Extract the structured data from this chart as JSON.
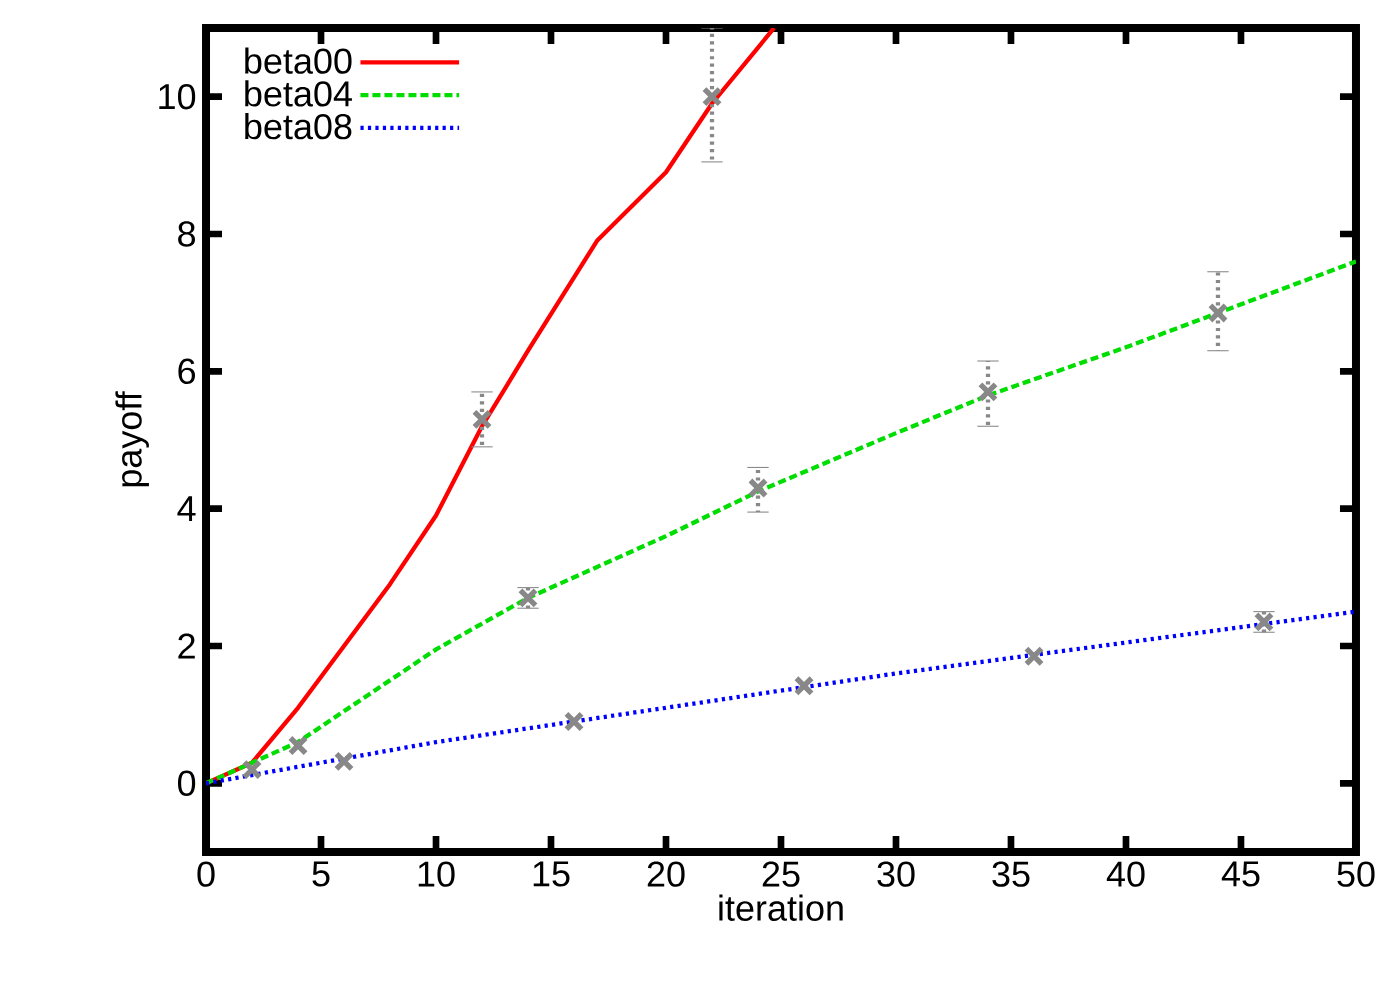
{
  "chart_data": {
    "type": "line",
    "xlabel": "iteration",
    "ylabel": "payoff",
    "xlim": [
      0,
      50
    ],
    "ylim": [
      -1,
      11
    ],
    "xticks": [
      0,
      5,
      10,
      15,
      20,
      25,
      30,
      35,
      40,
      45,
      50
    ],
    "yticks": [
      0,
      2,
      4,
      6,
      8,
      10
    ],
    "legend": "top left",
    "grid": false,
    "series": [
      {
        "name": "beta00",
        "color": "#ff0000",
        "line_style": "solid",
        "x": [
          0,
          2,
          4,
          6,
          8,
          10,
          12,
          14,
          17,
          20,
          22,
          24.7
        ],
        "values": [
          0,
          0.3,
          1.1,
          2.0,
          2.9,
          3.9,
          5.2,
          6.3,
          7.9,
          8.9,
          9.9,
          11
        ]
      },
      {
        "name": "beta04",
        "color": "#00dd00",
        "line_style": "dashed",
        "x": [
          0,
          4,
          10,
          14,
          20,
          24,
          30,
          34,
          40,
          44,
          50
        ],
        "values": [
          0,
          0.6,
          1.95,
          2.7,
          3.6,
          4.25,
          5.1,
          5.65,
          6.35,
          6.85,
          7.6
        ]
      },
      {
        "name": "beta08",
        "color": "#0000ff",
        "line_style": "dotted",
        "x": [
          0,
          10,
          20,
          30,
          40,
          50
        ],
        "values": [
          0,
          0.6,
          1.1,
          1.6,
          2.05,
          2.5
        ]
      },
      {
        "type": "scatter",
        "marker": "cross",
        "color": "#888888",
        "x": [
          2,
          4,
          6,
          12,
          14,
          16,
          22,
          24,
          26,
          34,
          36,
          44,
          46
        ],
        "values": [
          0.2,
          0.55,
          0.32,
          5.3,
          2.7,
          0.9,
          10.0,
          4.3,
          1.42,
          5.7,
          1.85,
          6.85,
          2.35
        ],
        "errors": [
          null,
          null,
          null,
          [
            4.9,
            5.7
          ],
          [
            2.55,
            2.85
          ],
          null,
          [
            9.05,
            11
          ],
          [
            3.95,
            4.6
          ],
          null,
          [
            5.2,
            6.15
          ],
          null,
          [
            6.3,
            7.45
          ],
          [
            2.2,
            2.5
          ]
        ]
      }
    ]
  }
}
